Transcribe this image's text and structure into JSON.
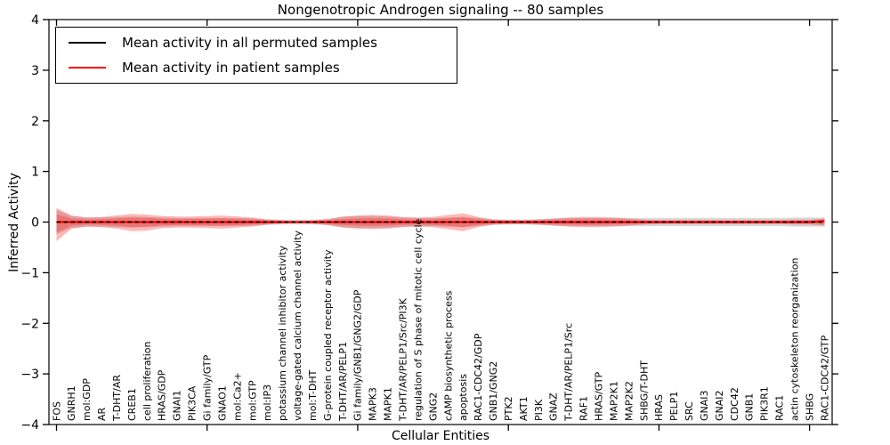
{
  "figure": {
    "title": "Nongenotropic Androgen signaling -- 80 samples",
    "xlabel": "Cellular Entities",
    "ylabel": "Inferred Activity"
  },
  "legend": {
    "items": [
      {
        "label": "Mean activity in all permuted samples",
        "color": "#000000"
      },
      {
        "label": "Mean activity in patient samples",
        "color": "#ff0000"
      }
    ]
  },
  "chart_data": {
    "type": "line",
    "title": "Nongenotropic Androgen signaling -- 80 samples",
    "xlabel": "Cellular Entities",
    "ylabel": "Inferred Activity",
    "ylim": [
      -4,
      4
    ],
    "yticks": [
      4,
      3,
      2,
      1,
      0,
      -1,
      -2,
      -3,
      -4
    ],
    "xtick_every": 10,
    "grid": false,
    "legend_position": "upper left",
    "categories": [
      "FOS",
      "GNRH1",
      "mol:GDP",
      "AR",
      "T-DHT/AR",
      "CREB1",
      "cell proliferation",
      "HRAS/GDP",
      "GNAI1",
      "PIK3CA",
      "Gi family/GTP",
      "GNAO1",
      "mol:Ca2+",
      "mol:GTP",
      "mol:IP3",
      "potassium channel inhibitor activity",
      "voltage-gated calcium channel activity",
      "mol:T-DHT",
      "G-protein coupled receptor activity",
      "T-DHT/AR/PELP1",
      "Gi family/GNB1/GNG2/GDP",
      "MAPK3",
      "MAPK1",
      "T-DHT/AR/PELP1/Src/PI3K",
      "regulation of S phase of mitotic cell cycle",
      "GNG2",
      "cAMP biosynthetic process",
      "apoptosis",
      "RAC1-CDC42/GDP",
      "GNB1/GNG2",
      "PTK2",
      "AKT1",
      "PI3K",
      "GNAZ",
      "T-DHT/AR/PELP1/Src",
      "RAF1",
      "HRAS/GTP",
      "MAP2K1",
      "MAP2K2",
      "SHBG/T-DHT",
      "HRAS",
      "PELP1",
      "SRC",
      "GNAI3",
      "GNAI2",
      "CDC42",
      "GNB1",
      "PIK3R1",
      "RAC1",
      "actin cytoskeleton reorganization",
      "SHBG",
      "RAC1-CDC42/GTP"
    ],
    "series": [
      {
        "name": "Mean activity in all permuted samples",
        "color": "#000000",
        "style": "dashed",
        "values": [
          0,
          0,
          0,
          0,
          0,
          0,
          0,
          0,
          0,
          0,
          0,
          0,
          0,
          0,
          0,
          0,
          0,
          0,
          0,
          0,
          0,
          0,
          0,
          0,
          0,
          0,
          0,
          0,
          0,
          0,
          0,
          0,
          0,
          0,
          0,
          0,
          0,
          0,
          0,
          0,
          0,
          0,
          0,
          0,
          0,
          0,
          0,
          0,
          0,
          0,
          0,
          0
        ]
      },
      {
        "name": "Mean activity in patient samples",
        "color": "#ff0000",
        "style": "solid",
        "values": [
          0,
          0,
          0,
          0,
          0,
          0,
          0,
          0,
          0,
          0,
          0,
          0,
          0,
          0,
          0,
          0,
          0,
          0,
          0,
          0,
          0,
          0,
          0,
          0,
          0,
          0,
          0,
          0,
          0,
          0,
          0,
          0,
          0,
          0,
          0,
          0,
          0,
          0,
          0,
          0,
          0,
          0,
          0,
          0,
          0,
          0,
          0,
          0,
          0,
          0,
          0,
          0.02
        ]
      }
    ],
    "bands": [
      {
        "name": "permuted-std-band",
        "color": "#999999",
        "alpha": 0.38,
        "inner_scale": 0,
        "upper": [
          0.24,
          0.12,
          0.09,
          0.09,
          0.1,
          0.11,
          0.1,
          0.09,
          0.08,
          0.08,
          0.08,
          0.08,
          0.08,
          0.07,
          0.06,
          0.05,
          0.05,
          0.05,
          0.06,
          0.1,
          0.12,
          0.12,
          0.11,
          0.09,
          0.08,
          0.08,
          0.09,
          0.1,
          0.08,
          0.06,
          0.05,
          0.05,
          0.06,
          0.07,
          0.08,
          0.08,
          0.08,
          0.08,
          0.08,
          0.08,
          0.08,
          0.08,
          0.08,
          0.08,
          0.08,
          0.08,
          0.08,
          0.08,
          0.08,
          0.09,
          0.09,
          0.09
        ],
        "lower": [
          0.24,
          0.12,
          0.09,
          0.09,
          0.1,
          0.11,
          0.1,
          0.09,
          0.08,
          0.08,
          0.08,
          0.08,
          0.08,
          0.07,
          0.06,
          0.05,
          0.05,
          0.05,
          0.06,
          0.1,
          0.12,
          0.12,
          0.11,
          0.09,
          0.08,
          0.08,
          0.09,
          0.1,
          0.08,
          0.06,
          0.05,
          0.05,
          0.06,
          0.07,
          0.08,
          0.08,
          0.08,
          0.08,
          0.08,
          0.08,
          0.08,
          0.08,
          0.08,
          0.08,
          0.08,
          0.08,
          0.08,
          0.08,
          0.08,
          0.09,
          0.09,
          0.09
        ]
      },
      {
        "name": "patient-std-band",
        "color": "#ff0000",
        "alpha": 0.28,
        "inner_scale": 0.55,
        "upper": [
          0.28,
          0.13,
          0.09,
          0.1,
          0.13,
          0.16,
          0.15,
          0.12,
          0.11,
          0.11,
          0.12,
          0.13,
          0.11,
          0.09,
          0.05,
          0.03,
          0.02,
          0.03,
          0.06,
          0.11,
          0.13,
          0.14,
          0.13,
          0.1,
          0.09,
          0.1,
          0.14,
          0.17,
          0.1,
          0.05,
          0.04,
          0.04,
          0.05,
          0.07,
          0.09,
          0.1,
          0.1,
          0.09,
          0.07,
          0.05,
          0.04,
          0.04,
          0.04,
          0.04,
          0.04,
          0.04,
          0.04,
          0.04,
          0.04,
          0.05,
          0.05,
          0.07
        ],
        "lower": [
          0.38,
          0.13,
          0.09,
          0.1,
          0.13,
          0.18,
          0.17,
          0.12,
          0.11,
          0.11,
          0.12,
          0.13,
          0.11,
          0.09,
          0.05,
          0.03,
          0.02,
          0.03,
          0.06,
          0.11,
          0.13,
          0.14,
          0.13,
          0.1,
          0.09,
          0.1,
          0.14,
          0.18,
          0.1,
          0.05,
          0.04,
          0.04,
          0.05,
          0.07,
          0.09,
          0.1,
          0.1,
          0.09,
          0.07,
          0.05,
          0.04,
          0.04,
          0.04,
          0.04,
          0.04,
          0.04,
          0.04,
          0.04,
          0.04,
          0.05,
          0.05,
          0.07
        ]
      }
    ]
  }
}
